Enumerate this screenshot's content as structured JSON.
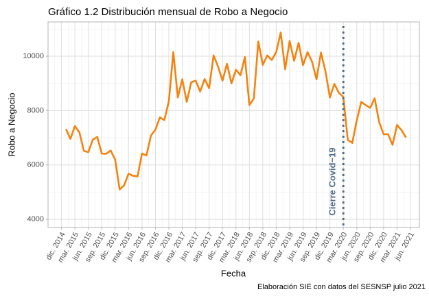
{
  "chart_data": {
    "type": "line",
    "title": "Gráfico 1.2 Distribución mensual de Robo a Negocio",
    "xlabel": "Fecha",
    "ylabel": "Robo a Negocio",
    "caption": "Elaboración SIE con datos del SESNSP julio 2021",
    "x": [
      "2015-01",
      "2015-02",
      "2015-03",
      "2015-04",
      "2015-05",
      "2015-06",
      "2015-07",
      "2015-08",
      "2015-09",
      "2015-10",
      "2015-11",
      "2015-12",
      "2016-01",
      "2016-02",
      "2016-03",
      "2016-04",
      "2016-05",
      "2016-06",
      "2016-07",
      "2016-08",
      "2016-09",
      "2016-10",
      "2016-11",
      "2016-12",
      "2017-01",
      "2017-02",
      "2017-03",
      "2017-04",
      "2017-05",
      "2017-06",
      "2017-07",
      "2017-08",
      "2017-09",
      "2017-10",
      "2017-11",
      "2017-12",
      "2018-01",
      "2018-02",
      "2018-03",
      "2018-04",
      "2018-05",
      "2018-06",
      "2018-07",
      "2018-08",
      "2018-09",
      "2018-10",
      "2018-11",
      "2018-12",
      "2019-01",
      "2019-02",
      "2019-03",
      "2019-04",
      "2019-05",
      "2019-06",
      "2019-07",
      "2019-08",
      "2019-09",
      "2019-10",
      "2019-11",
      "2019-12",
      "2020-01",
      "2020-02",
      "2020-03",
      "2020-04",
      "2020-05",
      "2020-06",
      "2020-07",
      "2020-08",
      "2020-09",
      "2020-10",
      "2020-11",
      "2020-12",
      "2021-01",
      "2021-02",
      "2021-03",
      "2021-04",
      "2021-05"
    ],
    "series": [
      {
        "name": "Robo a Negocio",
        "color": "#f5820d",
        "values": [
          7320,
          6960,
          7430,
          7200,
          6520,
          6470,
          6930,
          7030,
          6420,
          6410,
          6530,
          6200,
          5100,
          5250,
          5680,
          5600,
          5580,
          6420,
          6350,
          7080,
          7300,
          7750,
          7650,
          8350,
          10150,
          8480,
          9150,
          8320,
          9040,
          9100,
          8700,
          9160,
          8820,
          10030,
          9620,
          9100,
          9720,
          9000,
          9500,
          9300,
          9970,
          8200,
          8450,
          10540,
          9680,
          10030,
          9860,
          10150,
          10870,
          9520,
          10560,
          9830,
          10490,
          9670,
          10150,
          9800,
          9150,
          10130,
          9450,
          8480,
          8980,
          8650,
          8500,
          6920,
          6810,
          7640,
          8320,
          8200,
          8100,
          8450,
          7580,
          7130,
          7130,
          6740,
          7470,
          7280,
          7010
        ]
      }
    ],
    "xlim": [
      "2014-09",
      "2021-08"
    ],
    "xticks": [
      {
        "value": "2014-12",
        "label": "dic. 2014"
      },
      {
        "value": "2015-03",
        "label": "mar. 2015"
      },
      {
        "value": "2015-06",
        "label": "jun. 2015"
      },
      {
        "value": "2015-09",
        "label": "sep. 2015"
      },
      {
        "value": "2015-12",
        "label": "dic. 2015"
      },
      {
        "value": "2016-03",
        "label": "mar. 2016"
      },
      {
        "value": "2016-06",
        "label": "jun. 2016"
      },
      {
        "value": "2016-09",
        "label": "sep. 2016"
      },
      {
        "value": "2016-12",
        "label": "dic. 2016"
      },
      {
        "value": "2017-03",
        "label": "mar. 2017"
      },
      {
        "value": "2017-06",
        "label": "jun. 2017"
      },
      {
        "value": "2017-09",
        "label": "sep. 2017"
      },
      {
        "value": "2017-12",
        "label": "dic. 2017"
      },
      {
        "value": "2018-03",
        "label": "mar. 2018"
      },
      {
        "value": "2018-06",
        "label": "jun. 2018"
      },
      {
        "value": "2018-09",
        "label": "sep. 2018"
      },
      {
        "value": "2018-12",
        "label": "dic. 2018"
      },
      {
        "value": "2019-03",
        "label": "mar. 2019"
      },
      {
        "value": "2019-06",
        "label": "jun. 2019"
      },
      {
        "value": "2019-09",
        "label": "sep. 2019"
      },
      {
        "value": "2019-12",
        "label": "dic. 2019"
      },
      {
        "value": "2020-03",
        "label": "mar. 2020"
      },
      {
        "value": "2020-06",
        "label": "jun. 2020"
      },
      {
        "value": "2020-09",
        "label": "sep. 2020"
      },
      {
        "value": "2020-12",
        "label": "dic. 2020"
      },
      {
        "value": "2021-03",
        "label": "mar. 2021"
      },
      {
        "value": "2021-06",
        "label": "jun. 2021"
      }
    ],
    "ylim": [
      3700,
      11260
    ],
    "yticks": [
      4000,
      6000,
      8000,
      10000
    ],
    "grid": true,
    "annotations": [
      {
        "x": "2020-03",
        "text": "Cierre Covid−19",
        "color": "#4f6d8a"
      }
    ]
  }
}
